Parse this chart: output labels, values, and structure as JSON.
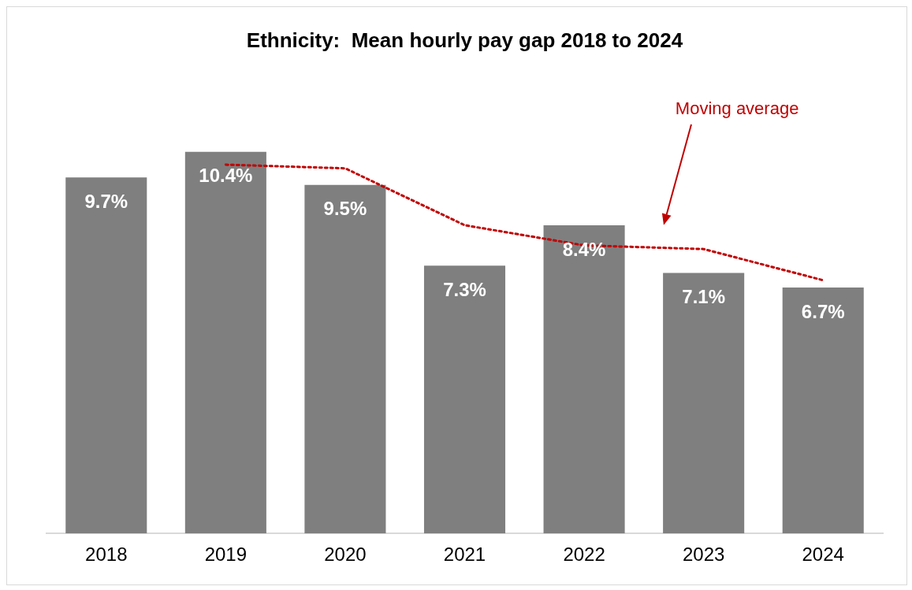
{
  "chart_data": {
    "type": "bar",
    "title": "Ethnicity:  Mean hourly pay gap 2018 to 2024",
    "categories": [
      "2018",
      "2019",
      "2020",
      "2021",
      "2022",
      "2023",
      "2024"
    ],
    "series": [
      {
        "color": "#7f7f7f",
        "values": [
          9.7,
          10.4,
          9.5,
          7.3,
          8.4,
          7.1,
          6.7
        ],
        "value_labels": [
          "9.7%",
          "10.4%",
          "9.5%",
          "7.3%",
          "8.4%",
          "7.1%",
          "6.7%"
        ]
      },
      {
        "type": "line",
        "name": "Moving average",
        "color": "#c00000",
        "line_style": "dotted",
        "marker": "none",
        "values": [
          null,
          10.05,
          9.95,
          8.4,
          7.85,
          7.75,
          6.9
        ]
      }
    ],
    "grid": false,
    "legend": false
  }
}
